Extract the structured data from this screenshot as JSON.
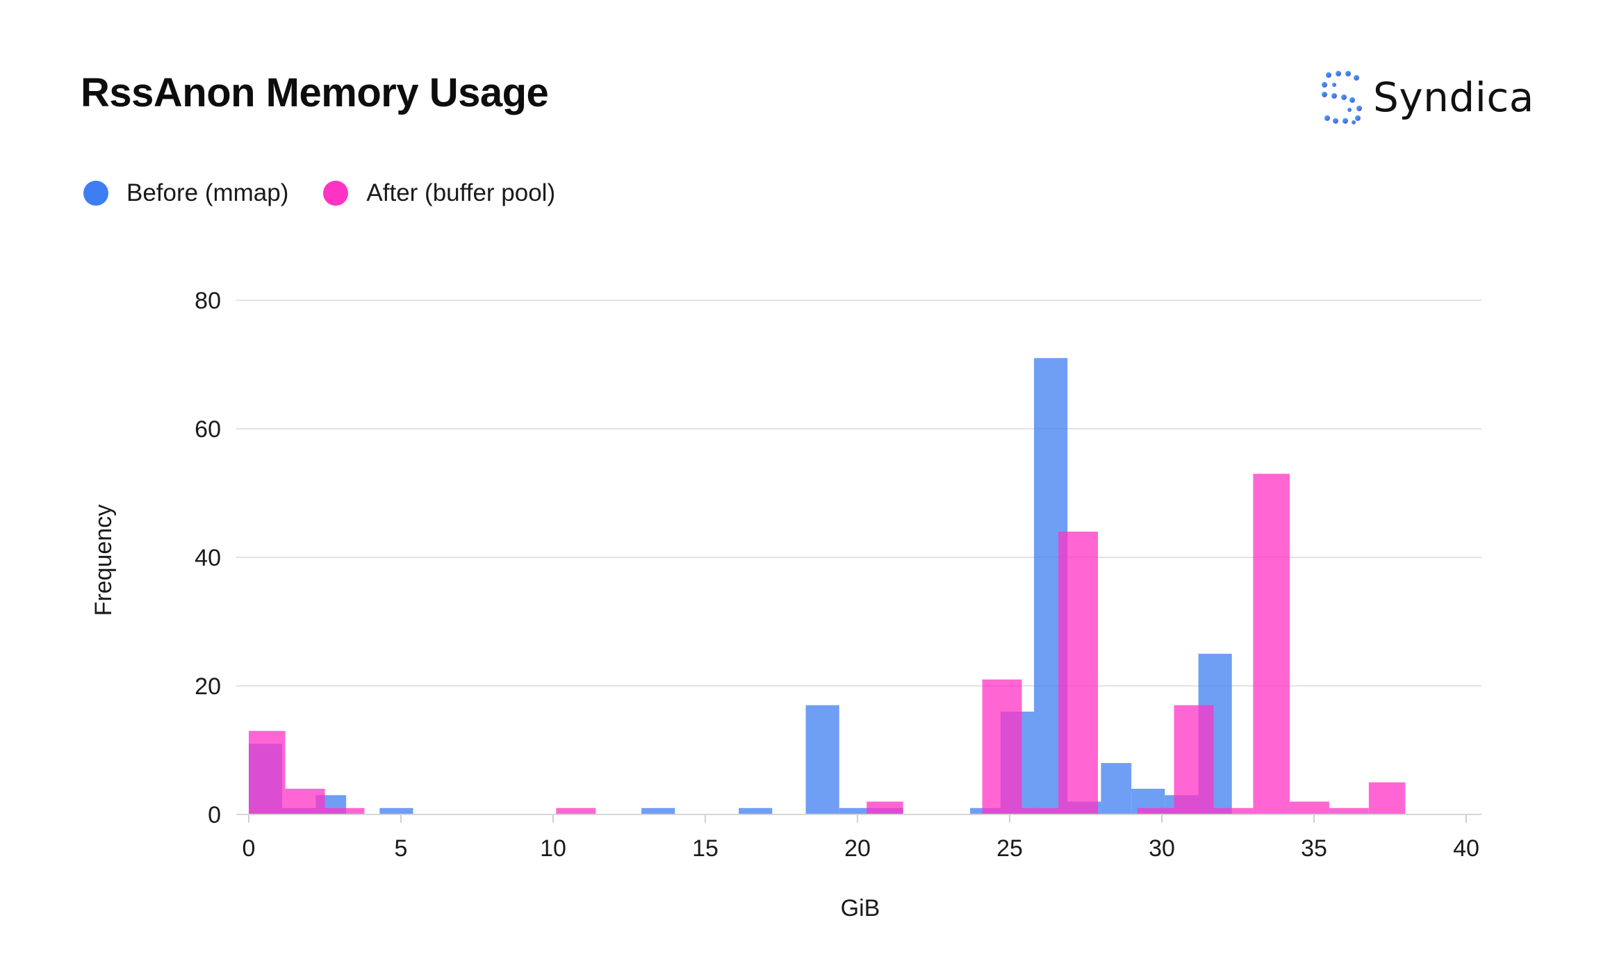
{
  "header": {
    "title": "RssAnon Memory Usage",
    "brand_name": "Syndica",
    "brand_icon": "syndica-logo-icon"
  },
  "colors": {
    "before": "#3f7ef2",
    "after": "#ff33c4",
    "grid": "#e3e3e3",
    "text": "#1a1a1a"
  },
  "chart_data": {
    "type": "bar",
    "title": "RssAnon Memory Usage",
    "xlabel": "GiB",
    "ylabel": "Frequency",
    "xlim": [
      0,
      40
    ],
    "ylim": [
      0,
      80
    ],
    "x_ticks": [
      0,
      5,
      10,
      15,
      20,
      25,
      30,
      35,
      40
    ],
    "y_ticks": [
      0,
      20,
      40,
      60,
      80
    ],
    "grid": true,
    "legend_position": "top-left",
    "bar_opacity": 0.75,
    "series": [
      {
        "name": "Before (mmap)",
        "color": "#3f7ef2",
        "bins": [
          {
            "x0": 0.0,
            "x1": 1.1,
            "value": 11
          },
          {
            "x0": 1.1,
            "x1": 2.2,
            "value": 1
          },
          {
            "x0": 2.2,
            "x1": 3.2,
            "value": 3
          },
          {
            "x0": 4.3,
            "x1": 5.4,
            "value": 1
          },
          {
            "x0": 12.9,
            "x1": 14.0,
            "value": 1
          },
          {
            "x0": 16.1,
            "x1": 17.2,
            "value": 1
          },
          {
            "x0": 18.3,
            "x1": 19.4,
            "value": 17
          },
          {
            "x0": 19.4,
            "x1": 21.5,
            "value": 1
          },
          {
            "x0": 23.7,
            "x1": 24.7,
            "value": 1
          },
          {
            "x0": 24.7,
            "x1": 25.8,
            "value": 16
          },
          {
            "x0": 25.8,
            "x1": 26.9,
            "value": 71
          },
          {
            "x0": 26.9,
            "x1": 28.0,
            "value": 2
          },
          {
            "x0": 28.0,
            "x1": 29.0,
            "value": 8
          },
          {
            "x0": 29.0,
            "x1": 30.1,
            "value": 4
          },
          {
            "x0": 30.1,
            "x1": 31.2,
            "value": 3
          },
          {
            "x0": 31.2,
            "x1": 32.3,
            "value": 25
          }
        ]
      },
      {
        "name": "After (buffer pool)",
        "color": "#ff33c4",
        "bins": [
          {
            "x0": 0.0,
            "x1": 1.2,
            "value": 13
          },
          {
            "x0": 1.2,
            "x1": 2.5,
            "value": 4
          },
          {
            "x0": 2.5,
            "x1": 3.8,
            "value": 1
          },
          {
            "x0": 10.1,
            "x1": 11.4,
            "value": 1
          },
          {
            "x0": 20.3,
            "x1": 21.5,
            "value": 2
          },
          {
            "x0": 24.1,
            "x1": 25.4,
            "value": 21
          },
          {
            "x0": 25.4,
            "x1": 26.6,
            "value": 1
          },
          {
            "x0": 26.6,
            "x1": 27.9,
            "value": 44
          },
          {
            "x0": 29.2,
            "x1": 30.4,
            "value": 1
          },
          {
            "x0": 30.4,
            "x1": 31.7,
            "value": 17
          },
          {
            "x0": 31.7,
            "x1": 33.0,
            "value": 1
          },
          {
            "x0": 33.0,
            "x1": 34.2,
            "value": 53
          },
          {
            "x0": 34.2,
            "x1": 35.5,
            "value": 2
          },
          {
            "x0": 35.5,
            "x1": 36.8,
            "value": 1
          },
          {
            "x0": 36.8,
            "x1": 38.0,
            "value": 5
          }
        ]
      }
    ]
  }
}
